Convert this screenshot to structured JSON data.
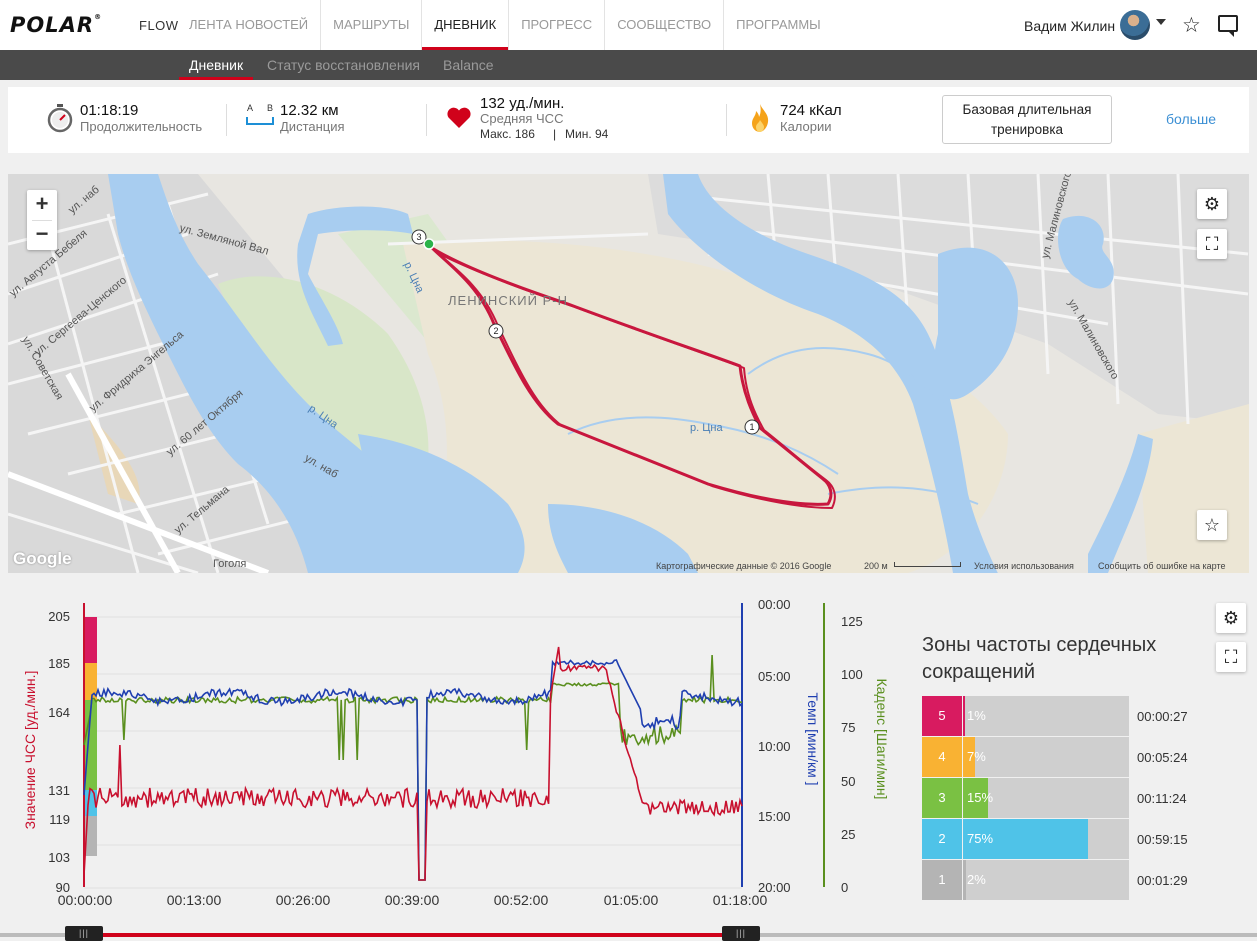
{
  "brand": {
    "logo": "POLAR",
    "reg": "®",
    "product": "FLOW"
  },
  "nav": {
    "items": [
      {
        "label": "ЛЕНТА НОВОСТЕЙ",
        "active": false
      },
      {
        "label": "МАРШРУТЫ",
        "active": false
      },
      {
        "label": "ДНЕВНИК",
        "active": true
      },
      {
        "label": "ПРОГРЕСС",
        "active": false
      },
      {
        "label": "СООБЩЕСТВО",
        "active": false
      },
      {
        "label": "ПРОГРАММЫ",
        "active": false
      }
    ],
    "user_name": "Вадим Жилин"
  },
  "subnav": {
    "diary": "Дневник",
    "recovery": "Статус восстановления",
    "balance": "Balance"
  },
  "summary": {
    "duration_value": "01:18:19",
    "duration_label": "Продолжительность",
    "distance_value": "12.32 км",
    "distance_label": "Дистанция",
    "distance_icon_a": "A",
    "distance_icon_b": "B",
    "hr_value": "132 уд./мин.",
    "hr_label": "Средняя ЧСС",
    "hr_max": "Макс. 186",
    "hr_sep": "|",
    "hr_min": "Мин. 94",
    "calories_value": "724 кКал",
    "calories_label": "Калории",
    "sport_button_line1": "Базовая длительная",
    "sport_button_line2": "тренировка",
    "more_link": "больше"
  },
  "map": {
    "labels": [
      "ЛЕНИНСКИЙ Р-Н",
      "р. Цна",
      "р. Цна",
      "р. Цна",
      "ул. Земляной Вал",
      "ул. Августа Бебеля",
      "ул. Сергеева-Ценского",
      "ул. Советская",
      "ул. Фридриха Энгельса",
      "ул. 60 лет Октября",
      "ул. Тельмана",
      "ул. наб",
      "ул. наб",
      "ул. Малиновского",
      "ул. Малиновского",
      "Гоголя"
    ],
    "markers": [
      "1",
      "2",
      "3"
    ],
    "zoom_in": "+",
    "zoom_out": "−",
    "google": "Google",
    "copyright": "Картографические данные © 2016 Google",
    "scale": "200 м",
    "terms": "Условия использования",
    "report": "Сообщить об ошибке на карте"
  },
  "chart": {
    "left_axis_label": "Значение ЧСС [уд./мин.]",
    "pace_axis_label": "Темп [мин/км ]",
    "cadence_axis_label": "Каденс [Шаги/мин]",
    "hr_ticks": [
      "205",
      "185",
      "164",
      "131",
      "119",
      "103",
      "90"
    ],
    "pace_ticks": [
      "00:00",
      "05:00",
      "10:00",
      "15:00",
      "20:00"
    ],
    "cadence_ticks": [
      "125",
      "100",
      "75",
      "50",
      "25",
      "0"
    ],
    "time_ticks": [
      "00:00:00",
      "00:13:00",
      "00:26:00",
      "00:39:00",
      "00:52:00",
      "01:05:00",
      "01:18:00"
    ],
    "colors": {
      "hr": "#c8102e",
      "pace": "#1f3fb0",
      "cadence": "#5a8f1e"
    }
  },
  "zones": {
    "title": "Зоны частоты сердечных сокращений",
    "rows": [
      {
        "zone": "5",
        "percent": "1%",
        "fraction": 0.01,
        "time": "00:00:27",
        "color": "#d81b60"
      },
      {
        "zone": "4",
        "percent": "7%",
        "fraction": 0.07,
        "time": "00:05:24",
        "color": "#f9b233"
      },
      {
        "zone": "3",
        "percent": "15%",
        "fraction": 0.15,
        "time": "00:11:24",
        "color": "#7ac143"
      },
      {
        "zone": "2",
        "percent": "75%",
        "fraction": 0.75,
        "time": "00:59:15",
        "color": "#4fc3e8"
      },
      {
        "zone": "1",
        "percent": "2%",
        "fraction": 0.02,
        "time": "00:01:29",
        "color": "#b4b4b4"
      }
    ]
  },
  "slider": {
    "grip": "|||"
  },
  "icons": [
    "stopwatch-icon",
    "heart-icon",
    "flame-icon",
    "settings-icon",
    "fullscreen-icon",
    "star-icon",
    "chat-icon",
    "chevron-down-icon"
  ]
}
